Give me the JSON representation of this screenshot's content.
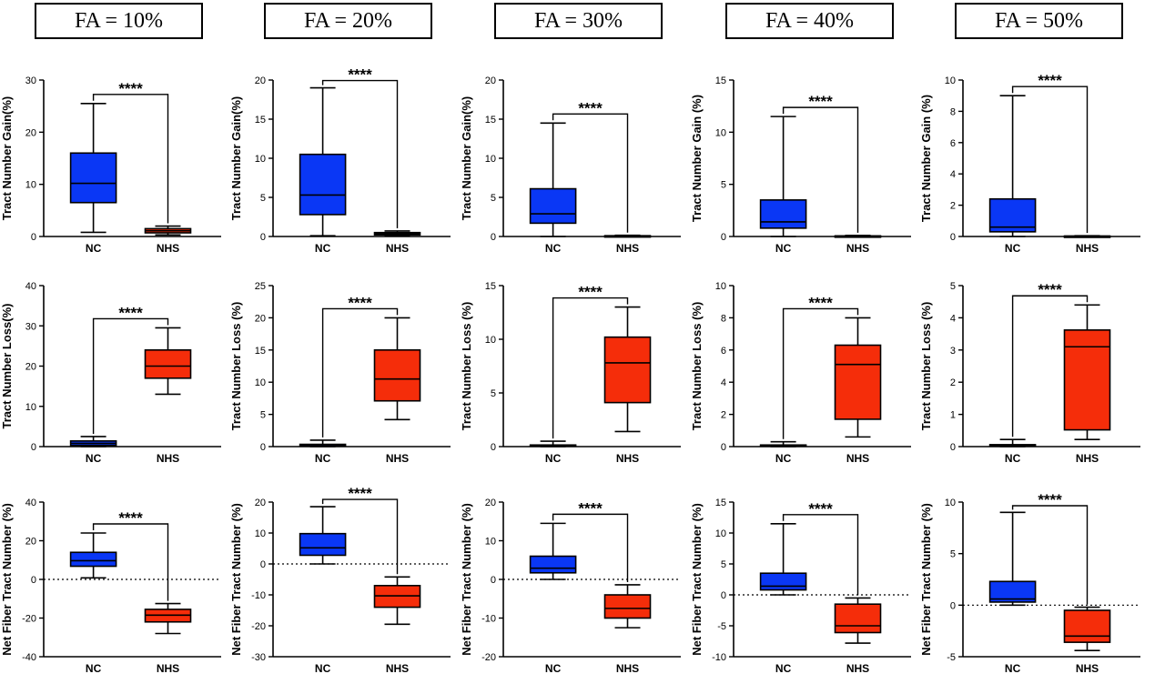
{
  "headers": [
    "FA = 10%",
    "FA = 20%",
    "FA = 30%",
    "FA = 40%",
    "FA = 50%"
  ],
  "colors": {
    "NC": "#0a37f5",
    "NHS": "#f52d0a"
  },
  "chart_data": [
    {
      "type": "box",
      "row": "gain",
      "col": 0,
      "ylabel": "Tract Number Gain(%)",
      "ylim": [
        0,
        30
      ],
      "yticks": [
        0,
        10,
        20,
        30
      ],
      "categories": [
        "NC",
        "NHS"
      ],
      "significance": "****",
      "zero_line": false,
      "boxes": [
        {
          "min": 0.8,
          "q1": 6.5,
          "median": 10.2,
          "q3": 16,
          "max": 25.5
        },
        {
          "min": 0.3,
          "q1": 0.7,
          "median": 1.1,
          "q3": 1.5,
          "max": 2
        }
      ]
    },
    {
      "type": "box",
      "row": "gain",
      "col": 1,
      "ylabel": "Tract Number Gain(%)",
      "ylim": [
        0,
        20
      ],
      "yticks": [
        0,
        5,
        10,
        15,
        20
      ],
      "categories": [
        "NC",
        "NHS"
      ],
      "significance": "****",
      "zero_line": false,
      "boxes": [
        {
          "min": 0.1,
          "q1": 2.8,
          "median": 5.3,
          "q3": 10.5,
          "max": 19
        },
        {
          "min": 0.05,
          "q1": 0.2,
          "median": 0.35,
          "q3": 0.5,
          "max": 0.7
        }
      ]
    },
    {
      "type": "box",
      "row": "gain",
      "col": 2,
      "ylabel": "Tract Number Gain(%)",
      "ylim": [
        0,
        20
      ],
      "yticks": [
        0,
        5,
        10,
        15,
        20
      ],
      "categories": [
        "NC",
        "NHS"
      ],
      "significance": "****",
      "zero_line": false,
      "boxes": [
        {
          "min": 0,
          "q1": 1.7,
          "median": 2.9,
          "q3": 6.1,
          "max": 14.5
        },
        {
          "min": 0,
          "q1": 0.03,
          "median": 0.06,
          "q3": 0.1,
          "max": 0.15
        }
      ]
    },
    {
      "type": "box",
      "row": "gain",
      "col": 3,
      "ylabel": "Tract Number Gain (%)",
      "ylim": [
        0,
        15
      ],
      "yticks": [
        0,
        5,
        10,
        15
      ],
      "categories": [
        "NC",
        "NHS"
      ],
      "significance": "****",
      "zero_line": false,
      "boxes": [
        {
          "min": 0,
          "q1": 0.8,
          "median": 1.4,
          "q3": 3.5,
          "max": 11.5
        },
        {
          "min": 0,
          "q1": 0.02,
          "median": 0.04,
          "q3": 0.06,
          "max": 0.1
        }
      ]
    },
    {
      "type": "box",
      "row": "gain",
      "col": 4,
      "ylabel": "Tract Number Gain (%)",
      "ylim": [
        0,
        10
      ],
      "yticks": [
        0,
        2,
        4,
        6,
        8,
        10
      ],
      "categories": [
        "NC",
        "NHS"
      ],
      "significance": "****",
      "zero_line": false,
      "boxes": [
        {
          "min": 0,
          "q1": 0.3,
          "median": 0.6,
          "q3": 2.4,
          "max": 9
        },
        {
          "min": 0,
          "q1": 0.01,
          "median": 0.02,
          "q3": 0.03,
          "max": 0.05
        }
      ]
    },
    {
      "type": "box",
      "row": "loss",
      "col": 0,
      "ylabel": "Tract Number Loss(%)",
      "ylim": [
        0,
        40
      ],
      "yticks": [
        0,
        10,
        20,
        30,
        40
      ],
      "categories": [
        "NC",
        "NHS"
      ],
      "significance": "****",
      "zero_line": false,
      "boxes": [
        {
          "min": 0,
          "q1": 0.3,
          "median": 0.8,
          "q3": 1.4,
          "max": 2.5
        },
        {
          "min": 13,
          "q1": 17,
          "median": 20,
          "q3": 24,
          "max": 29.5
        }
      ]
    },
    {
      "type": "box",
      "row": "loss",
      "col": 1,
      "ylabel": "Tract Number Loss (%)",
      "ylim": [
        0,
        25
      ],
      "yticks": [
        0,
        5,
        10,
        15,
        20,
        25
      ],
      "categories": [
        "NC",
        "NHS"
      ],
      "significance": "****",
      "zero_line": false,
      "boxes": [
        {
          "min": 0,
          "q1": 0.05,
          "median": 0.15,
          "q3": 0.35,
          "max": 1
        },
        {
          "min": 4.2,
          "q1": 7.1,
          "median": 10.5,
          "q3": 15,
          "max": 20
        }
      ]
    },
    {
      "type": "box",
      "row": "loss",
      "col": 2,
      "ylabel": "Tract Number Loss (%)",
      "ylim": [
        0,
        15
      ],
      "yticks": [
        0,
        5,
        10,
        15
      ],
      "categories": [
        "NC",
        "NHS"
      ],
      "significance": "****",
      "zero_line": false,
      "boxes": [
        {
          "min": 0,
          "q1": 0.03,
          "median": 0.08,
          "q3": 0.15,
          "max": 0.5
        },
        {
          "min": 1.4,
          "q1": 4.1,
          "median": 7.8,
          "q3": 10.2,
          "max": 13
        }
      ]
    },
    {
      "type": "box",
      "row": "loss",
      "col": 3,
      "ylabel": "Tract Number Loss (%)",
      "ylim": [
        0,
        10
      ],
      "yticks": [
        0,
        2,
        4,
        6,
        8,
        10
      ],
      "categories": [
        "NC",
        "NHS"
      ],
      "significance": "****",
      "zero_line": false,
      "boxes": [
        {
          "min": 0,
          "q1": 0.02,
          "median": 0.05,
          "q3": 0.1,
          "max": 0.3
        },
        {
          "min": 0.6,
          "q1": 1.7,
          "median": 5.1,
          "q3": 6.3,
          "max": 8
        }
      ]
    },
    {
      "type": "box",
      "row": "loss",
      "col": 4,
      "ylabel": "Tract Number Loss (%)",
      "ylim": [
        0,
        5
      ],
      "yticks": [
        0,
        1,
        2,
        3,
        4,
        5
      ],
      "categories": [
        "NC",
        "NHS"
      ],
      "significance": "****",
      "zero_line": false,
      "boxes": [
        {
          "min": 0,
          "q1": 0.01,
          "median": 0.03,
          "q3": 0.06,
          "max": 0.22
        },
        {
          "min": 0.22,
          "q1": 0.52,
          "median": 3.1,
          "q3": 3.62,
          "max": 4.4
        }
      ]
    },
    {
      "type": "box",
      "row": "net",
      "col": 0,
      "ylabel": "Net Fiber Tract Number (%)",
      "ylim": [
        -40,
        40
      ],
      "yticks": [
        -40,
        -20,
        0,
        20,
        40
      ],
      "categories": [
        "NC",
        "NHS"
      ],
      "significance": "****",
      "zero_line": true,
      "boxes": [
        {
          "min": 0.8,
          "q1": 6.8,
          "median": 9.7,
          "q3": 14,
          "max": 24
        },
        {
          "min": -28,
          "q1": -22,
          "median": -18.5,
          "q3": -15.5,
          "max": -12.5
        }
      ]
    },
    {
      "type": "box",
      "row": "net",
      "col": 1,
      "ylabel": "Net Fiber Tract Number (%)",
      "ylim": [
        -30,
        20
      ],
      "yticks": [
        -30,
        -20,
        -10,
        0,
        10,
        20
      ],
      "categories": [
        "NC",
        "NHS"
      ],
      "significance": "****",
      "zero_line": true,
      "boxes": [
        {
          "min": 0,
          "q1": 2.8,
          "median": 5.2,
          "q3": 9.8,
          "max": 18.5
        },
        {
          "min": -19.5,
          "q1": -14,
          "median": -10.3,
          "q3": -7,
          "max": -4.2
        }
      ]
    },
    {
      "type": "box",
      "row": "net",
      "col": 2,
      "ylabel": "Net Fiber Tract Number (%)",
      "ylim": [
        -20,
        20
      ],
      "yticks": [
        -20,
        -10,
        0,
        10,
        20
      ],
      "categories": [
        "NC",
        "NHS"
      ],
      "significance": "****",
      "zero_line": true,
      "boxes": [
        {
          "min": 0,
          "q1": 1.7,
          "median": 2.9,
          "q3": 6,
          "max": 14.5
        },
        {
          "min": -12.5,
          "q1": -10,
          "median": -7.5,
          "q3": -4,
          "max": -1.4
        }
      ]
    },
    {
      "type": "box",
      "row": "net",
      "col": 3,
      "ylabel": "Net Fiber Tract Number (%)",
      "ylim": [
        -10,
        15
      ],
      "yticks": [
        -10,
        -5,
        0,
        5,
        10,
        15
      ],
      "categories": [
        "NC",
        "NHS"
      ],
      "significance": "****",
      "zero_line": true,
      "boxes": [
        {
          "min": 0,
          "q1": 0.8,
          "median": 1.4,
          "q3": 3.5,
          "max": 11.5
        },
        {
          "min": -7.8,
          "q1": -6.1,
          "median": -5,
          "q3": -1.5,
          "max": -0.5
        }
      ]
    },
    {
      "type": "box",
      "row": "net",
      "col": 4,
      "ylabel": "Net Fiber Tract Number (%)",
      "ylim": [
        -5,
        10
      ],
      "yticks": [
        -5,
        0,
        5,
        10
      ],
      "categories": [
        "NC",
        "NHS"
      ],
      "significance": "****",
      "zero_line": true,
      "boxes": [
        {
          "min": 0,
          "q1": 0.3,
          "median": 0.6,
          "q3": 2.3,
          "max": 9
        },
        {
          "min": -4.4,
          "q1": -3.6,
          "median": -3,
          "q3": -0.5,
          "max": -0.2
        }
      ]
    }
  ]
}
